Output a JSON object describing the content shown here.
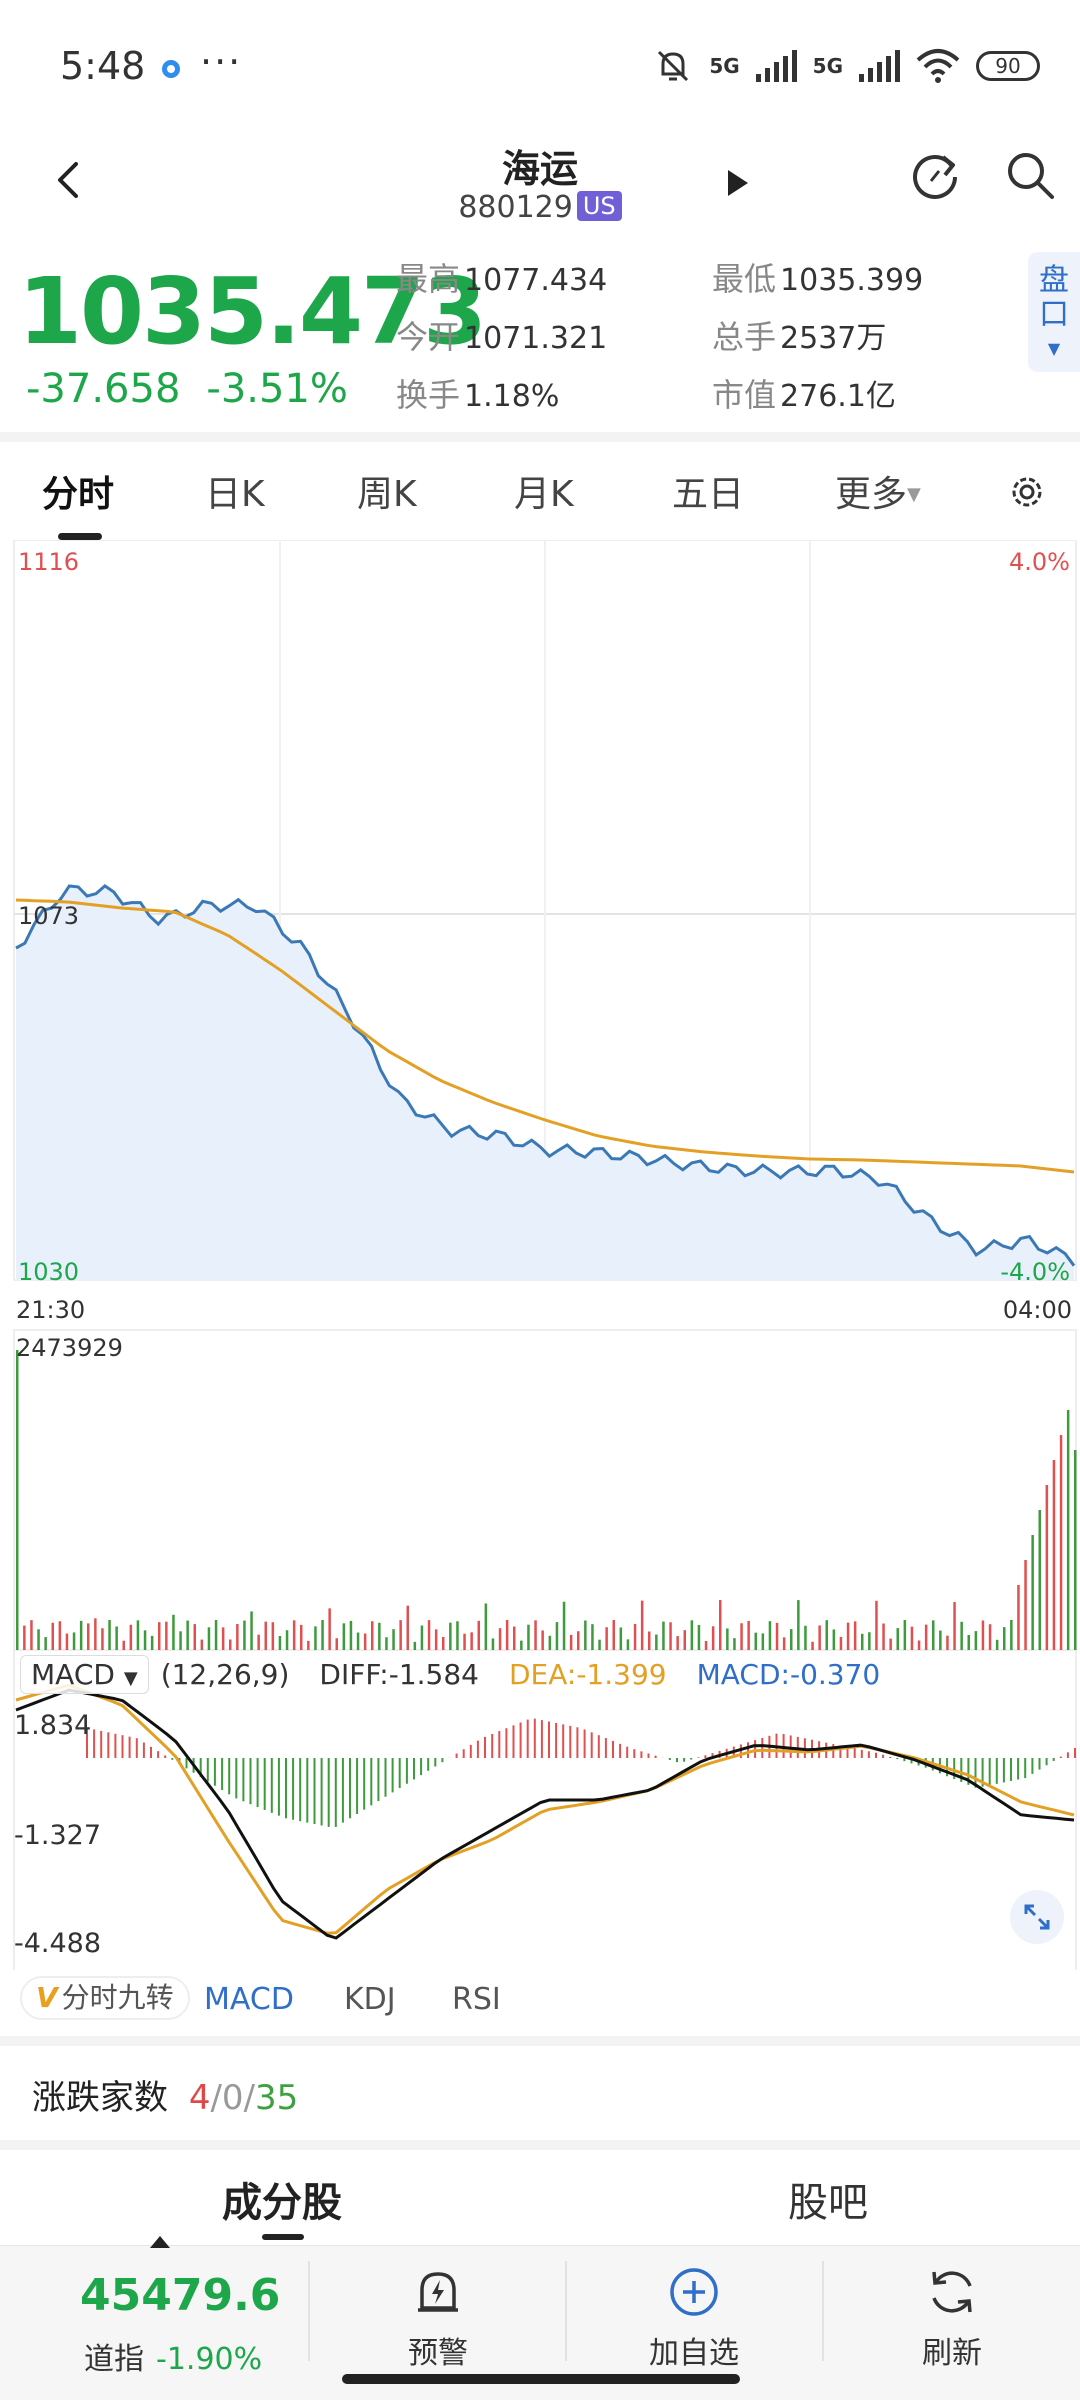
{
  "status_bar": {
    "time": "5:48",
    "more": "···",
    "signal1": "5G",
    "signal2": "5G",
    "battery": "90"
  },
  "header": {
    "title": "海运",
    "code": "880129",
    "market_badge": "US"
  },
  "quote": {
    "price": "1035.473",
    "change": "-37.658",
    "change_pct": "-3.51%",
    "stats": [
      {
        "label": "最高",
        "value": "1077.434"
      },
      {
        "label": "最低",
        "value": "1035.399"
      },
      {
        "label": "今开",
        "value": "1071.321"
      },
      {
        "label": "总手",
        "value": "2537万"
      },
      {
        "label": "换手",
        "value": "1.18%"
      },
      {
        "label": "市值",
        "value": "276.1亿"
      }
    ],
    "pan_button": "盘口"
  },
  "tabs": [
    "分时",
    "日K",
    "周K",
    "月K",
    "五日",
    "更多"
  ],
  "chart": {
    "price_high": "1116",
    "price_mid": "1073",
    "price_low": "1030",
    "pct_high": "4.0%",
    "pct_low": "-4.0%",
    "time_start": "21:30",
    "time_end": "04:00",
    "volume_max": "2473929",
    "macd_top": "1.834",
    "macd_mid": "-1.327",
    "macd_bottom": "-4.488",
    "colors": {
      "price": "#3a78b6",
      "avg": "#e3a024",
      "up": "#e05050",
      "down": "#3d9a3d",
      "fill": "#e8f1fb"
    }
  },
  "macd": {
    "selector": "MACD",
    "params": "(12,26,9)",
    "diff": "DIFF:-1.584",
    "dea": "DEA:-1.399",
    "macd": "MACD:-0.370"
  },
  "indicator_tabs": {
    "nine": "分时九转",
    "nine_mark": "V",
    "items": [
      "MACD",
      "KDJ",
      "RSI"
    ]
  },
  "updown": {
    "label": "涨跌家数",
    "up": "4",
    "flat": "0",
    "down": "35",
    "sep": "/"
  },
  "bottom_tabs": [
    "成分股",
    "股吧"
  ],
  "bottom_nav": {
    "index_value": "45479.6",
    "index_name": "道指",
    "index_change": "-1.90%",
    "alert": "预警",
    "add": "加自选",
    "refresh": "刷新"
  }
}
